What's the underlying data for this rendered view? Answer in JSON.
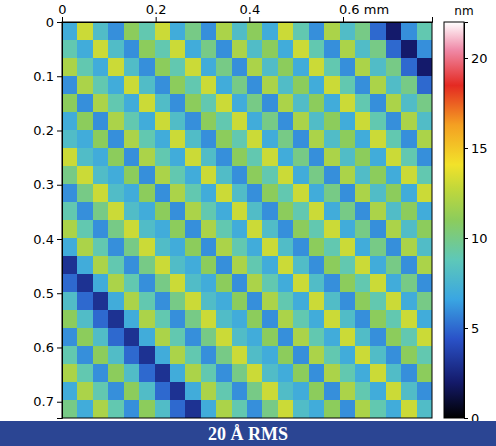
{
  "chart_data": {
    "type": "heatmap",
    "title": "20 Å RMS",
    "xlim": [
      0,
      0.79
    ],
    "ylim": [
      0,
      0.73
    ],
    "xticks": [
      0,
      0.2,
      0.4,
      {
        "value": 0.6,
        "label": "0.6 mm"
      }
    ],
    "yticks": [
      0,
      0.1,
      0.2,
      0.3,
      0.4,
      0.5,
      0.6,
      0.7
    ],
    "colorbar": {
      "label": "nm",
      "range": [
        0,
        22
      ],
      "ticks": [
        0,
        5,
        10,
        15,
        20
      ]
    },
    "cells": [
      [
        7,
        13,
        8,
        6,
        11,
        9,
        13,
        7,
        10,
        6,
        12,
        8,
        11,
        7,
        13,
        9,
        6,
        12,
        8,
        10,
        5,
        2,
        6,
        9
      ],
      [
        9,
        7,
        13,
        8,
        6,
        11,
        9,
        13,
        7,
        10,
        6,
        12,
        8,
        11,
        7,
        13,
        9,
        6,
        12,
        8,
        10,
        5,
        2,
        6
      ],
      [
        12,
        9,
        7,
        13,
        8,
        6,
        11,
        9,
        13,
        7,
        10,
        6,
        12,
        8,
        11,
        7,
        13,
        9,
        6,
        12,
        8,
        10,
        5,
        2
      ],
      [
        6,
        12,
        9,
        7,
        13,
        8,
        6,
        11,
        9,
        13,
        7,
        10,
        6,
        12,
        8,
        11,
        7,
        13,
        9,
        6,
        12,
        8,
        10,
        5
      ],
      [
        11,
        6,
        12,
        9,
        7,
        13,
        8,
        6,
        11,
        9,
        13,
        7,
        10,
        6,
        12,
        8,
        11,
        7,
        13,
        9,
        6,
        12,
        8,
        10
      ],
      [
        7,
        11,
        6,
        12,
        9,
        7,
        13,
        8,
        6,
        11,
        9,
        13,
        7,
        10,
        6,
        12,
        8,
        11,
        7,
        13,
        9,
        6,
        12,
        8
      ],
      [
        8,
        7,
        11,
        6,
        12,
        9,
        7,
        13,
        8,
        6,
        11,
        9,
        13,
        7,
        10,
        6,
        12,
        8,
        11,
        7,
        13,
        9,
        6,
        12
      ],
      [
        13,
        8,
        7,
        11,
        6,
        12,
        9,
        7,
        13,
        8,
        6,
        11,
        9,
        13,
        7,
        10,
        6,
        12,
        8,
        11,
        7,
        13,
        9,
        6
      ],
      [
        10,
        13,
        8,
        7,
        11,
        6,
        12,
        9,
        7,
        13,
        8,
        6,
        11,
        9,
        13,
        7,
        10,
        6,
        12,
        8,
        11,
        7,
        13,
        9
      ],
      [
        6,
        10,
        13,
        8,
        7,
        11,
        6,
        12,
        9,
        7,
        13,
        8,
        6,
        11,
        9,
        13,
        7,
        10,
        6,
        12,
        8,
        11,
        7,
        13
      ],
      [
        9,
        6,
        10,
        13,
        8,
        7,
        11,
        6,
        12,
        9,
        7,
        13,
        8,
        6,
        11,
        9,
        13,
        7,
        10,
        6,
        12,
        8,
        11,
        7
      ],
      [
        12,
        9,
        6,
        10,
        13,
        8,
        7,
        11,
        6,
        12,
        9,
        7,
        13,
        8,
        6,
        11,
        9,
        13,
        7,
        10,
        6,
        12,
        8,
        11
      ],
      [
        7,
        12,
        9,
        6,
        10,
        13,
        8,
        7,
        11,
        6,
        12,
        9,
        7,
        13,
        8,
        6,
        11,
        9,
        13,
        7,
        10,
        6,
        12,
        8
      ],
      [
        3,
        7,
        12,
        9,
        6,
        10,
        13,
        8,
        7,
        11,
        6,
        12,
        9,
        7,
        13,
        8,
        6,
        11,
        9,
        13,
        7,
        10,
        6,
        12
      ],
      [
        5,
        3,
        7,
        12,
        9,
        6,
        10,
        13,
        8,
        7,
        11,
        6,
        12,
        9,
        7,
        13,
        8,
        6,
        11,
        9,
        13,
        7,
        10,
        6
      ],
      [
        8,
        5,
        3,
        7,
        12,
        9,
        6,
        10,
        13,
        8,
        7,
        11,
        6,
        12,
        9,
        7,
        13,
        8,
        6,
        11,
        9,
        13,
        7,
        10
      ],
      [
        11,
        8,
        5,
        3,
        7,
        12,
        9,
        6,
        10,
        13,
        8,
        7,
        11,
        6,
        12,
        9,
        7,
        13,
        8,
        6,
        11,
        9,
        13,
        7
      ],
      [
        6,
        11,
        8,
        5,
        3,
        7,
        12,
        9,
        6,
        10,
        13,
        8,
        7,
        11,
        6,
        12,
        9,
        7,
        13,
        8,
        6,
        11,
        9,
        13
      ],
      [
        9,
        6,
        11,
        8,
        5,
        3,
        7,
        12,
        9,
        6,
        10,
        13,
        8,
        7,
        11,
        6,
        12,
        9,
        7,
        13,
        8,
        6,
        11,
        9
      ],
      [
        12,
        9,
        6,
        11,
        8,
        5,
        3,
        7,
        12,
        9,
        6,
        10,
        13,
        8,
        7,
        11,
        6,
        12,
        9,
        7,
        13,
        8,
        6,
        11
      ],
      [
        7,
        12,
        9,
        6,
        11,
        8,
        5,
        3,
        7,
        12,
        9,
        6,
        10,
        13,
        8,
        7,
        11,
        6,
        12,
        9,
        7,
        13,
        8,
        6
      ],
      [
        10,
        7,
        12,
        9,
        6,
        11,
        8,
        5,
        3,
        7,
        12,
        9,
        6,
        10,
        13,
        8,
        7,
        11,
        6,
        12,
        9,
        7,
        13,
        8
      ]
    ]
  }
}
